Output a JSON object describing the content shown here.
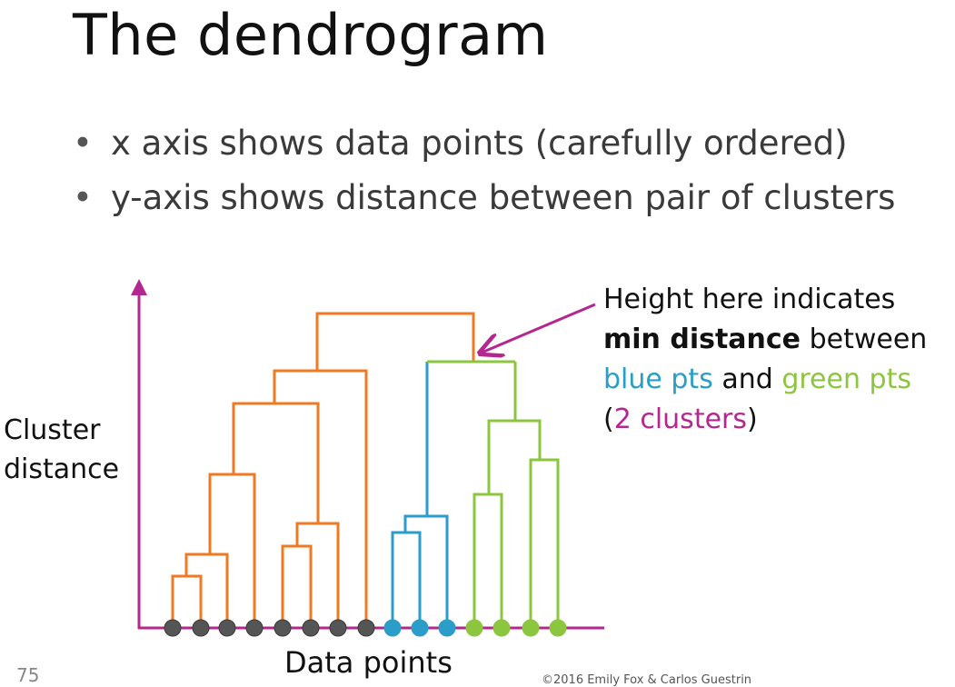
{
  "slide": {
    "title": "The dendrogram",
    "bullets": [
      "x axis shows data points (carefully ordered)",
      "y-axis shows distance between pair of clusters"
    ],
    "slide_number": "75",
    "copyright": "©2016 Emily Fox & Carlos Guestrin"
  },
  "diagram": {
    "y_axis_label_line1": "Cluster",
    "y_axis_label_line2": "distance",
    "x_axis_label": "Data points",
    "annotation": {
      "line1": "Height here indicates",
      "line2_bold": "min distance",
      "line2_rest": " between",
      "line3_blue": "blue pts",
      "line3_mid": " and ",
      "line3_green": "green pts",
      "line4_open": "(",
      "line4_purple": "2 clusters",
      "line4_close": ")"
    },
    "colors": {
      "axis": "#b3278f",
      "orange": "#f07a23",
      "blue": "#2a9dc8",
      "green": "#8cc63f",
      "point_gray": "#555555",
      "annotation_blue": "#2a9dc8",
      "annotation_green": "#8cc63f",
      "annotation_purple": "#b3278f"
    },
    "point_groups": [
      "gray",
      "gray",
      "gray",
      "gray",
      "gray",
      "gray",
      "gray",
      "gray",
      "blue",
      "blue",
      "blue",
      "green",
      "green",
      "green",
      "green"
    ]
  }
}
